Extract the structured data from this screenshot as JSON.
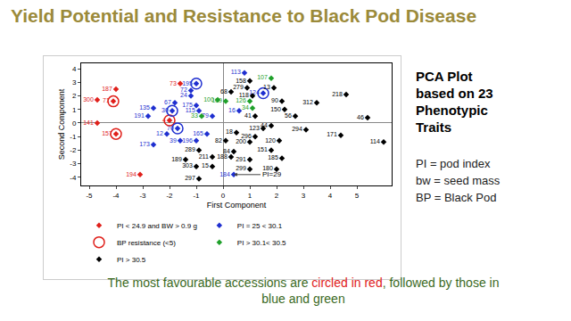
{
  "title": "Yield Potential and Resistance to Black Pod Disease",
  "side_text": {
    "heading": [
      "PCA Plot",
      "based on 23",
      "Phenotypic",
      "Traits"
    ],
    "lines": [
      "PI = pod index",
      "bw = seed mass",
      "BP = Black Pod"
    ]
  },
  "caption": {
    "before": "The most favourable accessions are ",
    "highlight": "circled in red",
    "after": ", followed by those in blue and green"
  },
  "chart_data": {
    "type": "scatter",
    "x_label": "First Component",
    "y_label": "Second Component",
    "xlim": [
      -5.3,
      6.3
    ],
    "xticks": [
      -5,
      -4,
      -3,
      -2,
      -1,
      0,
      1,
      2,
      3,
      4,
      5
    ],
    "ylim": [
      -4.6,
      4.4
    ],
    "yticks": [
      -4,
      -3,
      -2,
      -1,
      0,
      1,
      2,
      3,
      4
    ],
    "grid": false,
    "legend": "bottom",
    "annotations": [
      {
        "text": "PI=29",
        "x": 0.4,
        "y": -3.8
      }
    ],
    "series": [
      {
        "name": "PI < 24.9 and BW > 0.9 g",
        "color": "#e0201b",
        "marker": "diamond",
        "labels": [
          "187",
          "300",
          "71",
          "141",
          "157",
          "194",
          "73",
          "4"
        ],
        "x": [
          -4.0,
          -4.7,
          -4.1,
          -4.7,
          -4.0,
          -3.1,
          -1.6,
          -2.0
        ],
        "y": [
          2.5,
          1.7,
          1.6,
          0.0,
          -0.8,
          -3.8,
          2.9,
          0.2
        ]
      },
      {
        "name": "PI = 25 < 30.1",
        "color": "#1f2fd0",
        "marker": "diamond",
        "labels": [
          "195",
          "72",
          "24",
          "67",
          "135",
          "175",
          "30",
          "191",
          "115",
          "79",
          "70",
          "12",
          "39",
          "173",
          "196",
          "165",
          "113",
          "124",
          "16",
          "184"
        ],
        "x": [
          -1.0,
          -1.2,
          -1.2,
          -1.8,
          -2.6,
          -1.0,
          -1.9,
          -2.8,
          -0.9,
          -0.4,
          -1.7,
          -2.1,
          -1.6,
          -2.6,
          -1.0,
          -0.6,
          0.8,
          1.5,
          0.6,
          0.4
        ],
        "y": [
          2.9,
          2.4,
          2.0,
          1.5,
          1.1,
          1.3,
          0.9,
          0.5,
          0.9,
          0.5,
          -0.4,
          -0.8,
          -1.3,
          -1.6,
          -1.3,
          -0.8,
          3.7,
          2.2,
          0.9,
          -3.8
        ]
      },
      {
        "name": "BP resistance (<5)",
        "color": "#e0201b",
        "marker": "circle-open",
        "colors": [
          "#e0201b",
          "#e0201b",
          "#e0201b",
          "#1f2fd0",
          "#1f2fd0",
          "#1f2fd0",
          "#1f2fd0"
        ],
        "x": [
          -4.1,
          -4.0,
          -2.0,
          -1.0,
          -1.9,
          -1.7,
          1.5
        ],
        "y": [
          1.6,
          -0.8,
          0.2,
          2.9,
          0.9,
          -0.4,
          2.2
        ]
      },
      {
        "name": "PI > 30.1< 30.5",
        "color": "#1fa02a",
        "marker": "diamond",
        "labels": [
          "107",
          "100",
          "109",
          "126",
          "34",
          "33"
        ],
        "x": [
          1.8,
          -0.2,
          0.1,
          1.0,
          1.1,
          -0.8
        ],
        "y": [
          3.3,
          1.7,
          1.6,
          1.6,
          1.1,
          0.5
        ]
      },
      {
        "name": "PI > 30.5",
        "color": "#000000",
        "marker": "diamond",
        "labels": [
          "158",
          "279",
          "13",
          "68",
          "118",
          "90",
          "312",
          "218",
          "150",
          "41",
          "46",
          "56",
          "294",
          "171",
          "114",
          "44",
          "123",
          "120",
          "296",
          "200",
          "18",
          "82",
          "151",
          "84",
          "289",
          "211",
          "188",
          "291",
          "189",
          "185",
          "303",
          "15",
          "299",
          "180",
          "297"
        ],
        "x": [
          1.0,
          0.9,
          1.9,
          0.3,
          1.1,
          2.2,
          3.5,
          4.6,
          2.3,
          1.2,
          5.4,
          2.7,
          3.1,
          4.4,
          6.0,
          1.8,
          1.5,
          2.1,
          1.2,
          1.0,
          0.5,
          0.1,
          1.8,
          0.4,
          -0.9,
          -0.4,
          0.3,
          1.0,
          -1.4,
          2.2,
          -1.0,
          -0.4,
          1.0,
          2.0,
          -0.9
        ],
        "y": [
          3.1,
          2.6,
          2.6,
          2.3,
          2.0,
          1.6,
          1.5,
          2.1,
          1.0,
          0.5,
          0.4,
          0.5,
          -0.5,
          -0.9,
          -1.4,
          -0.2,
          -0.4,
          -1.3,
          -1.0,
          -1.4,
          -0.7,
          -1.3,
          -2.0,
          -2.1,
          -2.0,
          -2.5,
          -2.5,
          -2.7,
          -2.7,
          -2.6,
          -3.2,
          -3.2,
          -3.4,
          -3.4,
          -4.1
        ]
      }
    ]
  }
}
